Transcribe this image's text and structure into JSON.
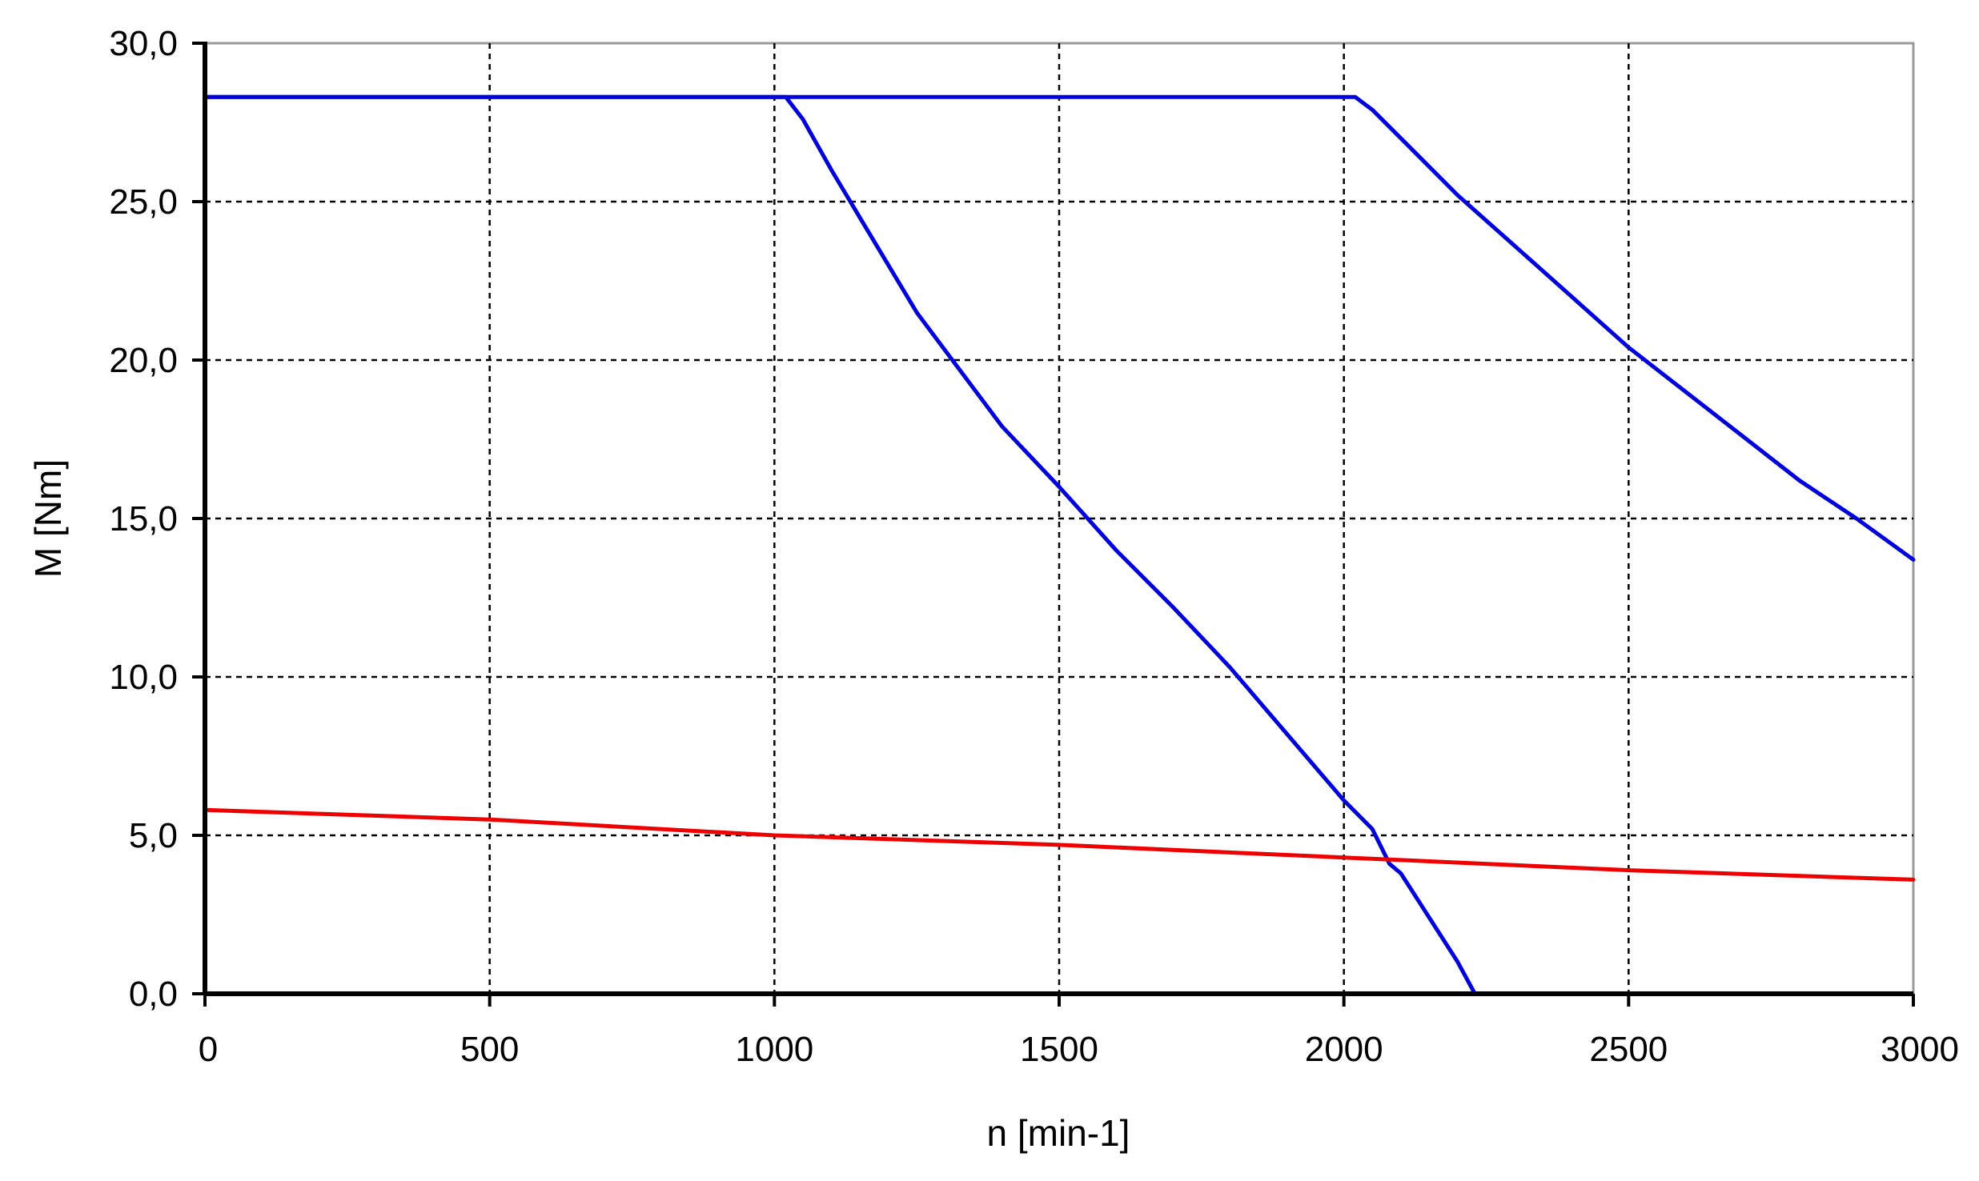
{
  "chart_data": {
    "type": "line",
    "title": "",
    "xlabel": "n [min-1]",
    "ylabel": "M [Nm]",
    "xlim": [
      0,
      3000
    ],
    "ylim": [
      0,
      30
    ],
    "x_ticks": [
      0,
      500,
      1000,
      1500,
      2000,
      2500,
      3000
    ],
    "x_tick_labels": [
      "0",
      "500",
      "1000",
      "1500",
      "2000",
      "2500",
      "3000"
    ],
    "y_ticks": [
      0,
      5,
      10,
      15,
      20,
      25,
      30
    ],
    "y_tick_labels": [
      "0,0",
      "5,0",
      "10,0",
      "15,0",
      "20,0",
      "25,0",
      "30,0"
    ],
    "grid": true,
    "legend": "none",
    "series": [
      {
        "color": "#0000dd",
        "points": [
          [
            0,
            28.3
          ],
          [
            1020,
            28.3
          ],
          [
            1050,
            27.6
          ],
          [
            1100,
            26.0
          ],
          [
            1150,
            24.5
          ],
          [
            1200,
            23.0
          ],
          [
            1250,
            21.5
          ],
          [
            1300,
            20.3
          ],
          [
            1400,
            17.9
          ],
          [
            1500,
            16.0
          ],
          [
            1600,
            14.0
          ],
          [
            1700,
            12.2
          ],
          [
            1800,
            10.3
          ],
          [
            1900,
            8.2
          ],
          [
            2000,
            6.1
          ],
          [
            2050,
            5.2
          ],
          [
            2080,
            4.1
          ],
          [
            2100,
            3.8
          ],
          [
            2150,
            2.4
          ],
          [
            2200,
            1.0
          ],
          [
            2230,
            0.0
          ]
        ]
      },
      {
        "color": "#0000dd",
        "points": [
          [
            0,
            28.3
          ],
          [
            2020,
            28.3
          ],
          [
            2050,
            27.9
          ],
          [
            2100,
            27.0
          ],
          [
            2200,
            25.2
          ],
          [
            2300,
            23.6
          ],
          [
            2400,
            22.0
          ],
          [
            2500,
            20.4
          ],
          [
            2600,
            19.0
          ],
          [
            2700,
            17.6
          ],
          [
            2800,
            16.2
          ],
          [
            2900,
            15.0
          ],
          [
            3000,
            13.7
          ]
        ]
      },
      {
        "color": "#ee0000",
        "points": [
          [
            0,
            5.8
          ],
          [
            500,
            5.5
          ],
          [
            1000,
            5.0
          ],
          [
            1500,
            4.7
          ],
          [
            2000,
            4.3
          ],
          [
            2500,
            3.9
          ],
          [
            3000,
            3.6
          ]
        ]
      }
    ]
  }
}
